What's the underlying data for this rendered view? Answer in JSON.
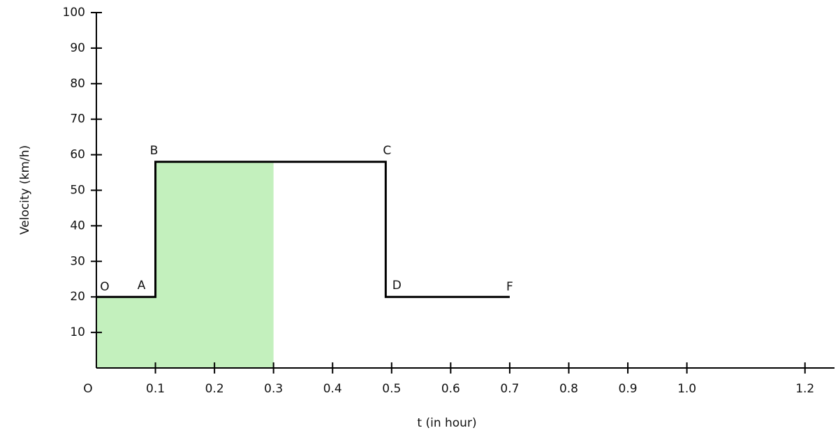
{
  "chart_data": {
    "type": "line",
    "x": [
      0,
      0.1,
      0.1,
      0.49,
      0.49,
      0.7
    ],
    "values": [
      20,
      20,
      58,
      58,
      20,
      20
    ],
    "point_labels": [
      "O",
      "A",
      "B",
      "C",
      "D",
      "F"
    ],
    "color": "#000000",
    "shaded": {
      "x": [
        0,
        0.1,
        0.1,
        0.3
      ],
      "values": [
        20,
        20,
        58,
        58
      ],
      "color": "#c3f0bd"
    },
    "xlabel": "t (in hour)",
    "ylabel": "Velocity (km/h)",
    "xlim": [
      0,
      1.25
    ],
    "ylim": [
      0,
      100
    ],
    "xticks": [
      {
        "value": 0,
        "label": "O"
      },
      0.1,
      0.2,
      0.3,
      0.4,
      0.5,
      0.6,
      0.7,
      0.8,
      0.9,
      {
        "value": 1.0,
        "label": "1.0"
      },
      1.2
    ],
    "yticks": [
      10,
      20,
      30,
      40,
      50,
      60,
      70,
      80,
      90,
      100
    ]
  }
}
